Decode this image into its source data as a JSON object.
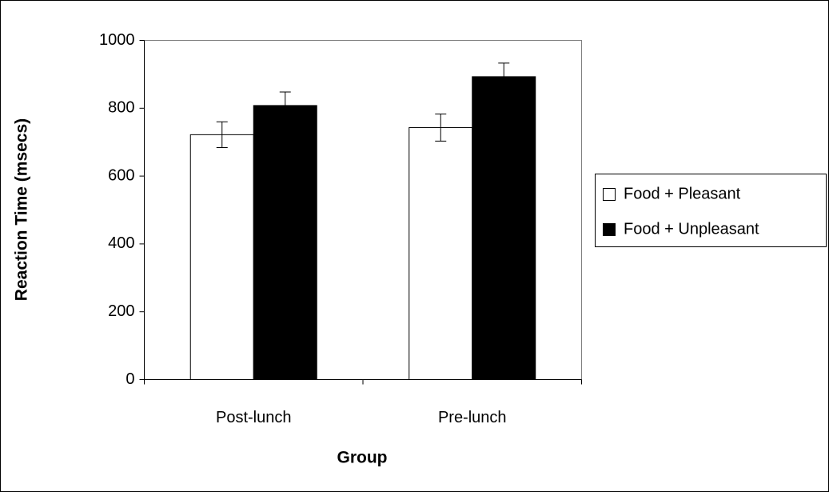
{
  "chart_data": {
    "type": "bar",
    "categories": [
      "Post-lunch",
      "Pre-lunch"
    ],
    "series": [
      {
        "name": "Food + Pleasant",
        "color": "#ffffff",
        "values": [
          722,
          743
        ],
        "errors": [
          38,
          40
        ]
      },
      {
        "name": "Food + Unpleasant",
        "color": "#000000",
        "values": [
          808,
          893
        ],
        "errors": [
          40,
          40
        ]
      }
    ],
    "xlabel": "Group",
    "ylabel": "Reaction Time (msecs)",
    "ylim": [
      0,
      1000
    ],
    "yticks": [
      0,
      200,
      400,
      600,
      800,
      1000
    ],
    "grid": false,
    "legend": "right"
  }
}
